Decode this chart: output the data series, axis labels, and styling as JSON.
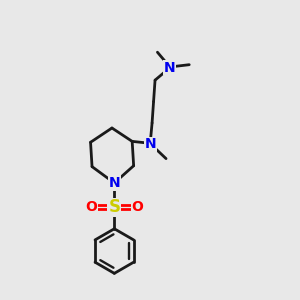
{
  "bg": "#e8e8e8",
  "bond_color": "#1a1a1a",
  "N_color": "#0000ee",
  "S_color": "#cccc00",
  "O_color": "#ff0000",
  "lw": 2.0,
  "fs": 10,
  "xlim": [
    0,
    10
  ],
  "ylim": [
    0,
    10
  ]
}
